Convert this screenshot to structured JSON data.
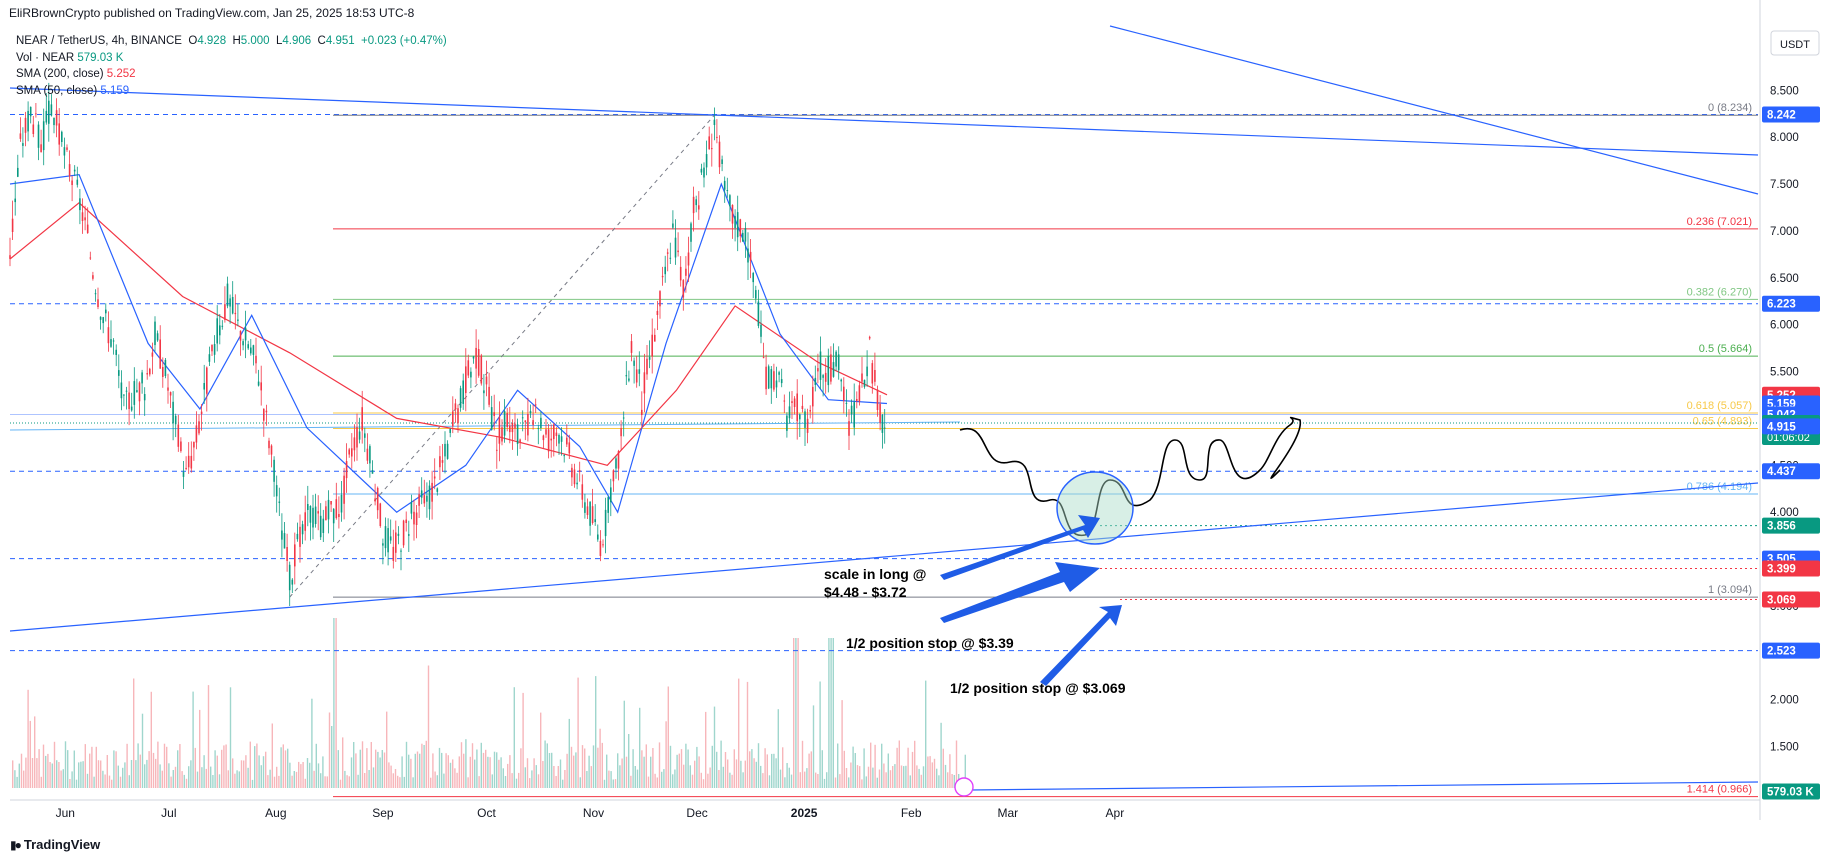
{
  "header": {
    "published": "EliRBrownCrypto published on TradingView.com, Jan 25, 2025 18:53 UTC-8"
  },
  "legend": {
    "symbol": "NEAR / TetherUS, 4h, BINANCE",
    "ohlc": {
      "o_label": "O",
      "o": "4.928",
      "h_label": "H",
      "h": "5.000",
      "l_label": "L",
      "l": "4.906",
      "c_label": "C",
      "c": "4.951",
      "change": "+0.023 (+0.47%)"
    },
    "volume": {
      "label": "Vol · NEAR",
      "value": "579.03 K"
    },
    "sma200": {
      "label": "SMA (200, close)",
      "value": "5.252"
    },
    "sma50": {
      "label": "SMA (50, close)",
      "value": "5.159"
    }
  },
  "colors": {
    "up": "#089981",
    "down": "#f23645",
    "sma50": "#2962ff",
    "sma200": "#f23645",
    "trendline": "#2962ff",
    "annotation_arrow": "#1f5ce6"
  },
  "chart_data": {
    "type": "candlestick",
    "currency": "USDT",
    "ylim": [
      0.93,
      9.1
    ],
    "price_ticks": [
      "8.500",
      "8.000",
      "7.500",
      "7.000",
      "6.500",
      "6.000",
      "5.500",
      "5.000",
      "4.500",
      "4.000",
      "3.500",
      "3.000",
      "2.500",
      "2.000",
      "1.500"
    ],
    "time_ticks": [
      "Jun",
      "Jul",
      "Aug",
      "Sep",
      "Oct",
      "Nov",
      "Dec",
      "2025",
      "Feb",
      "Mar",
      "Apr"
    ],
    "series": [
      {
        "name": "Price",
        "x_start": "2024-05-16",
        "x_end": "2025-01-25",
        "points": [
          [
            "2024-05-16",
            6.8
          ],
          [
            "2024-05-19",
            7.9
          ],
          [
            "2024-05-22",
            8.3
          ],
          [
            "2024-05-25",
            7.9
          ],
          [
            "2024-05-28",
            8.35
          ],
          [
            "2024-05-31",
            7.9
          ],
          [
            "2024-06-03",
            7.6
          ],
          [
            "2024-06-06",
            7.2
          ],
          [
            "2024-06-09",
            6.6
          ],
          [
            "2024-06-12",
            6.1
          ],
          [
            "2024-06-15",
            5.8
          ],
          [
            "2024-06-18",
            5.1
          ],
          [
            "2024-06-21",
            5.3
          ],
          [
            "2024-06-24",
            5.35
          ],
          [
            "2024-06-27",
            5.9
          ],
          [
            "2024-06-30",
            5.5
          ],
          [
            "2024-07-03",
            4.9
          ],
          [
            "2024-07-06",
            4.4
          ],
          [
            "2024-07-09",
            4.8
          ],
          [
            "2024-07-12",
            5.4
          ],
          [
            "2024-07-15",
            5.9
          ],
          [
            "2024-07-18",
            6.3
          ],
          [
            "2024-07-21",
            6.0
          ],
          [
            "2024-07-24",
            5.8
          ],
          [
            "2024-07-27",
            5.5
          ],
          [
            "2024-07-30",
            4.8
          ],
          [
            "2024-08-02",
            4.0
          ],
          [
            "2024-08-05",
            3.3
          ],
          [
            "2024-08-08",
            3.7
          ],
          [
            "2024-08-11",
            4.0
          ],
          [
            "2024-08-14",
            3.9
          ],
          [
            "2024-08-17",
            4.0
          ],
          [
            "2024-08-20",
            4.1
          ],
          [
            "2024-08-23",
            4.7
          ],
          [
            "2024-08-26",
            5.0
          ],
          [
            "2024-08-29",
            4.4
          ],
          [
            "2024-09-01",
            3.8
          ],
          [
            "2024-09-04",
            3.6
          ],
          [
            "2024-09-07",
            3.8
          ],
          [
            "2024-09-10",
            4.0
          ],
          [
            "2024-09-13",
            4.1
          ],
          [
            "2024-09-16",
            4.3
          ],
          [
            "2024-09-19",
            4.6
          ],
          [
            "2024-09-22",
            5.0
          ],
          [
            "2024-09-25",
            5.4
          ],
          [
            "2024-09-28",
            5.7
          ],
          [
            "2024-10-01",
            5.3
          ],
          [
            "2024-10-04",
            4.8
          ],
          [
            "2024-10-07",
            5.0
          ],
          [
            "2024-10-10",
            4.8
          ],
          [
            "2024-10-13",
            4.9
          ],
          [
            "2024-10-16",
            5.0
          ],
          [
            "2024-10-19",
            4.8
          ],
          [
            "2024-10-22",
            4.9
          ],
          [
            "2024-10-25",
            4.6
          ],
          [
            "2024-10-28",
            4.3
          ],
          [
            "2024-10-31",
            4.0
          ],
          [
            "2024-11-03",
            3.7
          ],
          [
            "2024-11-06",
            4.1
          ],
          [
            "2024-11-09",
            4.8
          ],
          [
            "2024-11-12",
            5.8
          ],
          [
            "2024-11-15",
            5.2
          ],
          [
            "2024-11-18",
            5.8
          ],
          [
            "2024-11-21",
            6.4
          ],
          [
            "2024-11-24",
            7.0
          ],
          [
            "2024-11-27",
            6.4
          ],
          [
            "2024-11-30",
            7.2
          ],
          [
            "2024-12-03",
            7.6
          ],
          [
            "2024-12-06",
            8.2
          ],
          [
            "2024-12-09",
            7.4
          ],
          [
            "2024-12-12",
            7.1
          ],
          [
            "2024-12-15",
            7.0
          ],
          [
            "2024-12-18",
            6.3
          ],
          [
            "2024-12-21",
            5.4
          ],
          [
            "2024-12-24",
            5.5
          ],
          [
            "2024-12-27",
            5.0
          ],
          [
            "2024-12-30",
            5.1
          ],
          [
            "2025-01-02",
            5.0
          ],
          [
            "2025-01-05",
            5.6
          ],
          [
            "2025-01-08",
            5.5
          ],
          [
            "2025-01-11",
            5.6
          ],
          [
            "2025-01-14",
            4.9
          ],
          [
            "2025-01-17",
            5.2
          ],
          [
            "2025-01-20",
            5.7
          ],
          [
            "2025-01-23",
            5.0
          ],
          [
            "2025-01-25",
            4.951
          ]
        ]
      },
      {
        "name": "SMA (50, close)",
        "points": [
          [
            "2024-05-16",
            7.5
          ],
          [
            "2024-06-05",
            7.6
          ],
          [
            "2024-06-25",
            5.8
          ],
          [
            "2024-07-10",
            5.1
          ],
          [
            "2024-07-25",
            6.1
          ],
          [
            "2024-08-10",
            4.9
          ],
          [
            "2024-09-05",
            4.0
          ],
          [
            "2024-09-25",
            4.5
          ],
          [
            "2024-10-10",
            5.3
          ],
          [
            "2024-10-28",
            4.7
          ],
          [
            "2024-11-08",
            4.0
          ],
          [
            "2024-11-22",
            5.8
          ],
          [
            "2024-12-08",
            7.5
          ],
          [
            "2024-12-25",
            5.9
          ],
          [
            "2025-01-08",
            5.2
          ],
          [
            "2025-01-25",
            5.159
          ]
        ]
      },
      {
        "name": "SMA (200, close)",
        "points": [
          [
            "2024-05-16",
            6.7
          ],
          [
            "2024-06-05",
            7.3
          ],
          [
            "2024-07-05",
            6.3
          ],
          [
            "2024-08-05",
            5.7
          ],
          [
            "2024-09-05",
            5.0
          ],
          [
            "2024-10-05",
            4.8
          ],
          [
            "2024-11-05",
            4.5
          ],
          [
            "2024-11-25",
            5.3
          ],
          [
            "2024-12-12",
            6.2
          ],
          [
            "2025-01-05",
            5.6
          ],
          [
            "2025-01-25",
            5.252
          ]
        ]
      }
    ],
    "fib_levels": [
      {
        "label": "0 (8.234)",
        "value": 8.234,
        "color": "#787b86"
      },
      {
        "label": "0.236 (7.021)",
        "value": 7.021,
        "color": "#f23645"
      },
      {
        "label": "0.382 (6.270)",
        "value": 6.27,
        "color": "#81c784"
      },
      {
        "label": "0.5 (5.664)",
        "value": 5.664,
        "color": "#4caf50"
      },
      {
        "label": "0.618 (5.057)",
        "value": 5.057,
        "color": "#f7c948"
      },
      {
        "label": "0.65 (4.893)",
        "value": 4.893,
        "color": "#f7c948"
      },
      {
        "label": "0.786 (4.194)",
        "value": 4.194,
        "color": "#64b5f6"
      },
      {
        "label": "1 (3.094)",
        "value": 3.094,
        "color": "#787b86"
      },
      {
        "label": "1.414 (0.966)",
        "value": 0.966,
        "color": "#f23645"
      }
    ],
    "horizontal_levels": [
      8.242,
      6.223,
      4.437,
      3.505,
      2.523
    ],
    "price_badges": [
      {
        "value": "8.242",
        "color": "#2962ff",
        "price": 8.242
      },
      {
        "value": "6.223",
        "color": "#2962ff",
        "price": 6.223
      },
      {
        "value": "5.252",
        "color": "#f23645",
        "price": 5.252
      },
      {
        "value": "5.159",
        "color": "#2962ff",
        "price": 5.159
      },
      {
        "value": "5.042",
        "color": "#2962ff",
        "price": 5.042
      },
      {
        "value": "4.951",
        "color": "#089981",
        "price": 4.951,
        "sub": "01:06:02"
      },
      {
        "value": "4.915",
        "color": "#2962ff",
        "price": 4.915
      },
      {
        "value": "4.437",
        "color": "#2962ff",
        "price": 4.437
      },
      {
        "value": "3.856",
        "color": "#089981",
        "price": 3.856
      },
      {
        "value": "3.505",
        "color": "#2962ff",
        "price": 3.505
      },
      {
        "value": "3.399",
        "color": "#f23645",
        "price": 3.399
      },
      {
        "value": "3.069",
        "color": "#f23645",
        "price": 3.069
      },
      {
        "value": "2.523",
        "color": "#2962ff",
        "price": 2.523
      },
      {
        "value": "579.03 K",
        "color": "#089981",
        "price": 1.02
      }
    ],
    "annotations": [
      {
        "text": "scale in long @",
        "text2": "$4.48 - $3.72"
      },
      {
        "text": "1/2 position stop @ $3.39"
      },
      {
        "text": "1/2 position stop @ $3.069"
      }
    ]
  },
  "footer": {
    "brand": "TradingView"
  }
}
